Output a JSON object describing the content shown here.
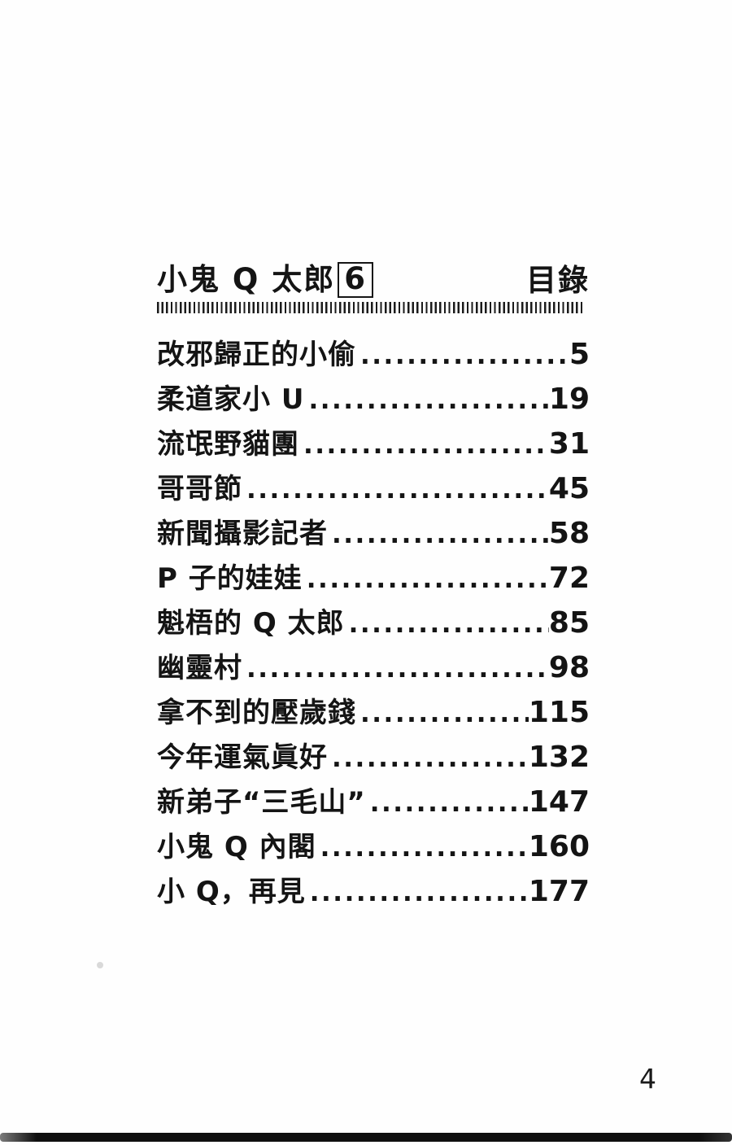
{
  "colors": {
    "paper": "#fefefe",
    "ink": "#141414"
  },
  "header": {
    "series_title": "小鬼 Q 太郎",
    "volume": "6",
    "toc_label": "目錄"
  },
  "toc": {
    "entries": [
      {
        "title": "改邪歸正的小偷",
        "page": "5"
      },
      {
        "title": "柔道家小 U",
        "page": "19"
      },
      {
        "title": "流氓野貓團",
        "page": "31"
      },
      {
        "title": "哥哥節",
        "page": "45"
      },
      {
        "title": "新聞攝影記者",
        "page": "58"
      },
      {
        "title": "P 子的娃娃",
        "page": "72"
      },
      {
        "title": "魁梧的 Q 太郎",
        "page": "85"
      },
      {
        "title": "幽靈村",
        "page": "98"
      },
      {
        "title": "拿不到的壓歲錢",
        "page": "115"
      },
      {
        "title": "今年運氣眞好",
        "page": "132"
      },
      {
        "title": "新弟子“三毛山”",
        "page": "147"
      },
      {
        "title": "小鬼 Q 內閣",
        "page": "160"
      },
      {
        "title": "小 Q，再見",
        "page": "177"
      }
    ],
    "leader_glyph": "."
  },
  "footer": {
    "page_number": "4"
  }
}
